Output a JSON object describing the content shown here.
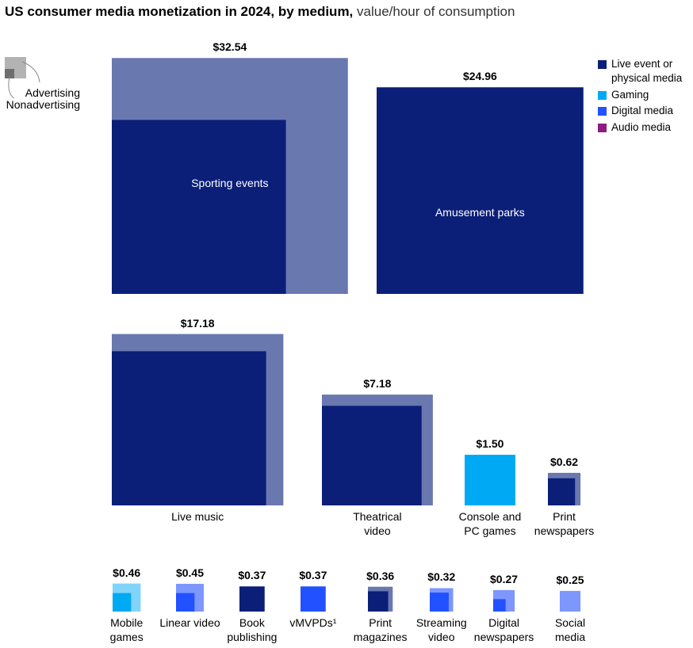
{
  "chart_data": {
    "type": "square-area",
    "title": "US consumer media monetization in 2024, by medium,",
    "subtitle": "value/hour of consumption",
    "key": {
      "advertising": "Advertising",
      "nonadvertising": "Nonadvertising"
    },
    "media": [
      {
        "name": "Live event or physical media",
        "color": "#0b1f78",
        "light_color": "#6a78b0"
      },
      {
        "name": "Gaming",
        "color": "#00a9f4",
        "light_color": "#80d4fa"
      },
      {
        "name": "Digital media",
        "color": "#2251ff",
        "light_color": "#7d97ff"
      },
      {
        "name": "Audio media",
        "color": "#8c1c80",
        "light_color": "#c68dbf"
      }
    ],
    "categories": [
      "Sporting events",
      "Amusement parks",
      "Live music",
      "Theatrical video",
      "Console and PC games",
      "Print newspapers",
      "Mobile games",
      "Linear video",
      "Book publishing",
      "vMVPDs¹",
      "Print magazines",
      "Streaming video",
      "Digital newspapers",
      "Social media"
    ],
    "medium": [
      "Live event or physical media",
      "Live event or physical media",
      "Live event or physical media",
      "Live event or physical media",
      "Gaming",
      "Live event or physical media",
      "Gaming",
      "Digital media",
      "Live event or physical media",
      "Digital media",
      "Live event or physical media",
      "Digital media",
      "Digital media",
      "Digital media"
    ],
    "values": [
      32.54,
      24.96,
      17.18,
      7.18,
      1.5,
      0.62,
      0.46,
      0.45,
      0.37,
      0.37,
      0.36,
      0.32,
      0.27,
      0.25
    ],
    "value_labels": [
      "$32.54",
      "$24.96",
      "$17.18",
      "$7.18",
      "$1.50",
      "$0.62",
      "$0.46",
      "$0.45",
      "$0.37",
      "$0.37",
      "$0.36",
      "$0.32",
      "$0.27",
      "$0.25"
    ],
    "nonadvertising": [
      17.7,
      24.96,
      13.9,
      5.8,
      1.5,
      0.43,
      0.2,
      0.2,
      0.37,
      0.37,
      0.24,
      0.21,
      0.09,
      0
    ]
  }
}
